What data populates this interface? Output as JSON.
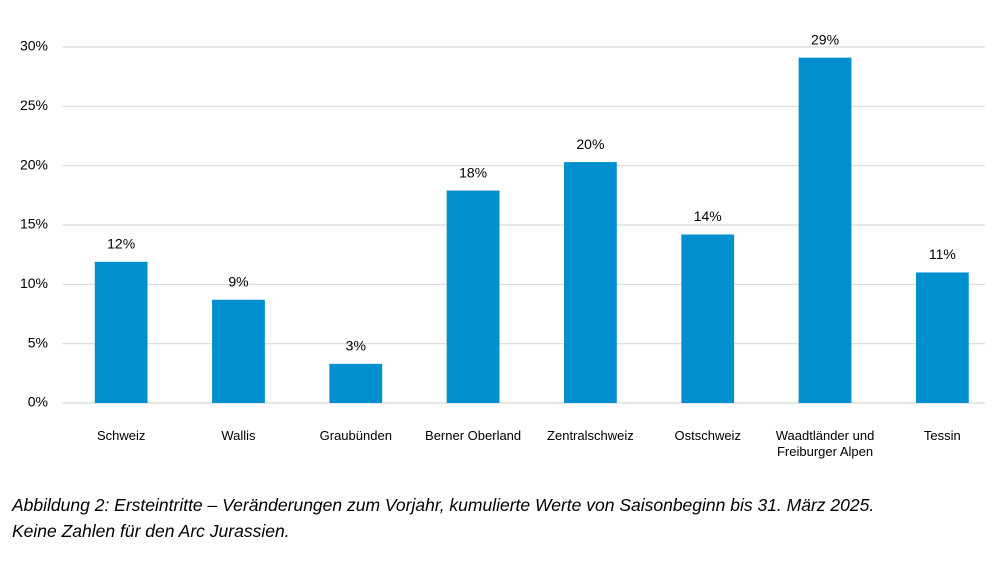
{
  "chart_data": {
    "type": "bar",
    "categories": [
      "Schweiz",
      "Wallis",
      "Graubünden",
      "Berner Oberland",
      "Zentralschweiz",
      "Ostschweiz",
      "Waadtländer und Freiburger Alpen",
      "Tessin"
    ],
    "values": [
      11.9,
      8.7,
      3.3,
      17.9,
      20.3,
      14.2,
      29.1,
      11.0
    ],
    "value_labels": [
      "12%",
      "9%",
      "3%",
      "18%",
      "20%",
      "14%",
      "29%",
      "11%"
    ],
    "color": "#0090d0",
    "ylim": [
      0,
      30
    ],
    "yticks": [
      {
        "value": 0,
        "label": "0%"
      },
      {
        "value": 5,
        "label": "5%"
      },
      {
        "value": 10,
        "label": "10%"
      },
      {
        "value": 15,
        "label": "15%"
      },
      {
        "value": 20,
        "label": "20%"
      },
      {
        "value": 25,
        "label": "25%"
      },
      {
        "value": 30,
        "label": "30%"
      }
    ],
    "grid": true,
    "caption": [
      "Abbildung 2: Ersteintritte – Veränderungen zum Vorjahr, kumulierte Werte von Saisonbeginn bis 31. März 2025.",
      "Keine Zahlen für den Arc Jurassien."
    ]
  }
}
